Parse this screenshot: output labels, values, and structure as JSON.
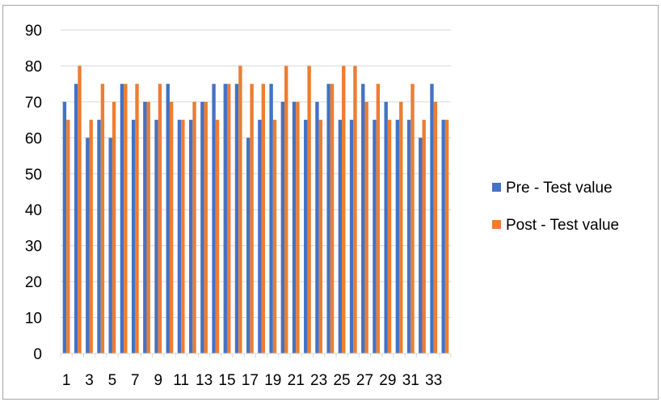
{
  "chart_data": {
    "type": "bar",
    "title": "",
    "xlabel": "",
    "ylabel": "",
    "ylim": [
      0,
      90
    ],
    "ytick_step": 10,
    "grid": true,
    "legend_position": "right",
    "categories": [
      "1",
      "2",
      "3",
      "4",
      "5",
      "6",
      "7",
      "8",
      "9",
      "10",
      "11",
      "12",
      "13",
      "14",
      "15",
      "16",
      "17",
      "18",
      "19",
      "20",
      "21",
      "22",
      "23",
      "24",
      "25",
      "26",
      "27",
      "28",
      "29",
      "30",
      "31",
      "32",
      "33",
      "34"
    ],
    "x_tick_labels": [
      "1",
      "",
      "3",
      "",
      "5",
      "",
      "7",
      "",
      "9",
      "",
      "11",
      "",
      "13",
      "",
      "15",
      "",
      "17",
      "",
      "19",
      "",
      "21",
      "",
      "23",
      "",
      "25",
      "",
      "27",
      "",
      "29",
      "",
      "31",
      "",
      "33",
      ""
    ],
    "y_tick_labels": [
      "0",
      "10",
      "20",
      "30",
      "40",
      "50",
      "60",
      "70",
      "80",
      "90"
    ],
    "series": [
      {
        "name": "Pre - Test value",
        "color": "#4472c4",
        "values": [
          70,
          75,
          60,
          65,
          60,
          75,
          65,
          70,
          65,
          75,
          65,
          65,
          70,
          75,
          75,
          75,
          60,
          65,
          75,
          70,
          70,
          65,
          70,
          75,
          65,
          65,
          75,
          65,
          70,
          65,
          65,
          60,
          75,
          65
        ]
      },
      {
        "name": "Post - Test value",
        "color": "#ed7d31",
        "values": [
          65,
          80,
          65,
          75,
          70,
          75,
          75,
          70,
          75,
          70,
          65,
          70,
          70,
          65,
          75,
          80,
          75,
          75,
          65,
          80,
          70,
          80,
          65,
          75,
          80,
          80,
          70,
          75,
          65,
          70,
          75,
          65,
          70,
          65
        ]
      }
    ]
  }
}
